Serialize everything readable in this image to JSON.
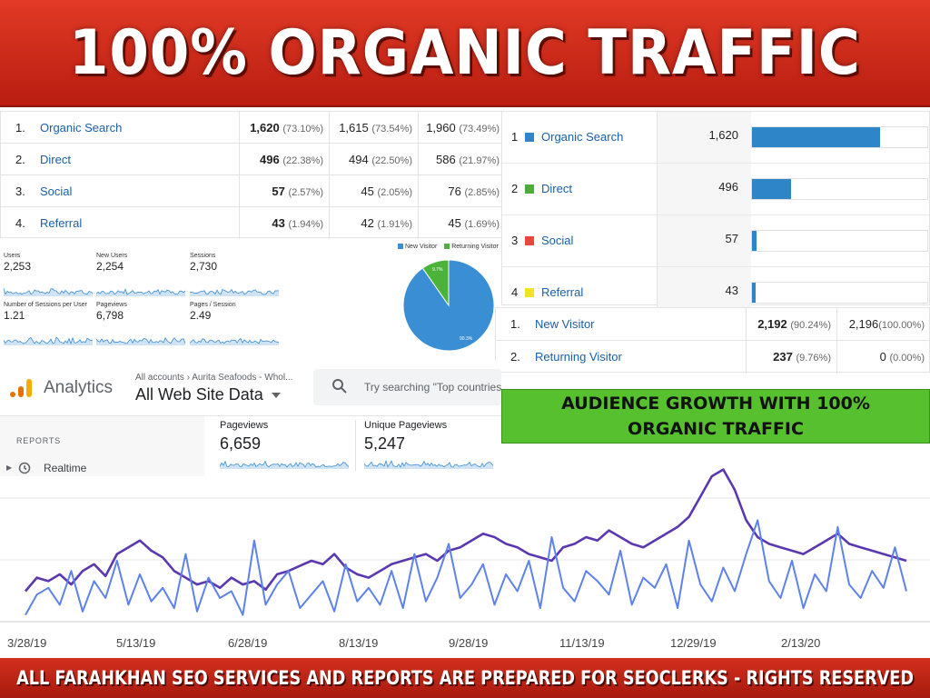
{
  "banner": {
    "title": "100% ORGANIC TRAFFIC",
    "footer": "ALL FARAHKHAN SEO SERVICES AND REPORTS ARE PREPARED FOR SEOCLERKS -  RIGHTS RESERVED"
  },
  "channel_table": {
    "rows": [
      {
        "num": "1.",
        "name": "Organic Search",
        "c1": "1,620",
        "p1": "(73.10%)",
        "c2": "1,615",
        "p2": "(73.54%)",
        "c3": "1,960",
        "p3": "(73.49%)"
      },
      {
        "num": "2.",
        "name": "Direct",
        "c1": "496",
        "p1": "(22.38%)",
        "c2": "494",
        "p2": "(22.50%)",
        "c3": "586",
        "p3": "(21.97%)"
      },
      {
        "num": "3.",
        "name": "Social",
        "c1": "57",
        "p1": "(2.57%)",
        "c2": "45",
        "p2": "(2.05%)",
        "c3": "76",
        "p3": "(2.85%)"
      },
      {
        "num": "4.",
        "name": "Referral",
        "c1": "43",
        "p1": "(1.94%)",
        "c2": "42",
        "p2": "(1.91%)",
        "c3": "45",
        "p3": "(1.69%)"
      }
    ]
  },
  "channel_bars": {
    "max": 1620,
    "rows": [
      {
        "num": "1",
        "name": "Organic Search",
        "value": "1,620",
        "amount": 1620,
        "color": "#2e86c9"
      },
      {
        "num": "2",
        "name": "Direct",
        "value": "496",
        "amount": 496,
        "color": "#49b035"
      },
      {
        "num": "3",
        "name": "Social",
        "value": "57",
        "amount": 57,
        "color": "#e8483a"
      },
      {
        "num": "4",
        "name": "Referral",
        "value": "43",
        "amount": 43,
        "color": "#f0e325"
      }
    ]
  },
  "visitor_table": {
    "rows": [
      {
        "num": "1.",
        "name": "New Visitor",
        "c1": "2,192",
        "p1": "(90.24%)",
        "c2": "2,196",
        "p2": "(100.00%)"
      },
      {
        "num": "2.",
        "name": "Returning Visitor",
        "c1": "237",
        "p1": "(9.76%)",
        "c2": "0",
        "p2": "(0.00%)"
      }
    ]
  },
  "overview": {
    "metrics": [
      {
        "label": "Users",
        "value": "2,253"
      },
      {
        "label": "New Users",
        "value": "2,254"
      },
      {
        "label": "Sessions",
        "value": "2,730"
      },
      {
        "label": "Number of Sessions per User",
        "value": "1.21"
      },
      {
        "label": "Pageviews",
        "value": "6,798"
      },
      {
        "label": "Pages / Session",
        "value": "2.49"
      }
    ],
    "legend": {
      "new": "New Visitor",
      "returning": "Returning Visitor"
    },
    "pie": {
      "new_pct": 90.3,
      "returning_pct": 9.7,
      "new_label": "90.3%",
      "returning_label": "9.7%",
      "new_color": "#3a8ed4",
      "returning_color": "#4bb33a"
    }
  },
  "analytics": {
    "product": "Analytics",
    "breadcrumb": "All accounts › Aurita Seafoods - Whol...",
    "view": "All Web Site Data",
    "search_placeholder": "Try searching \"Top countries",
    "reports": "REPORTS",
    "realtime": "Realtime",
    "pageviews_label": "Pageviews",
    "pageviews_value": "6,659",
    "unique_label": "Unique Pageviews",
    "unique_value": "5,247"
  },
  "growth_label": {
    "line1": "AUDIENCE GROWTH WITH 100%",
    "line2": "ORGANIC TRAFFIC"
  },
  "chart_data": {
    "type": "line",
    "x_ticks": [
      "3/28/19",
      "5/13/19",
      "6/28/19",
      "8/13/19",
      "9/28/19",
      "11/13/19",
      "12/29/19",
      "2/13/20"
    ],
    "series": [
      {
        "color": "#5b38b0",
        "values": [
          18,
          26,
          24,
          28,
          22,
          30,
          34,
          27,
          40,
          44,
          48,
          42,
          38,
          30,
          26,
          22,
          24,
          20,
          26,
          22,
          24,
          19,
          28,
          30,
          33,
          36,
          34,
          40,
          32,
          28,
          26,
          30,
          34,
          36,
          38,
          40,
          36,
          42,
          44,
          48,
          52,
          50,
          46,
          44,
          40,
          38,
          36,
          44,
          46,
          50,
          48,
          54,
          50,
          46,
          44,
          48,
          52,
          56,
          62,
          74,
          86,
          90,
          78,
          60,
          50,
          46,
          44,
          42,
          40,
          44,
          48,
          52,
          46,
          44,
          42,
          40,
          38,
          36
        ]
      },
      {
        "color": "#5e82e8",
        "values": [
          4,
          16,
          20,
          10,
          30,
          6,
          24,
          14,
          36,
          10,
          28,
          12,
          20,
          8,
          40,
          6,
          26,
          14,
          18,
          4,
          48,
          10,
          22,
          30,
          8,
          16,
          24,
          6,
          34,
          12,
          20,
          10,
          30,
          8,
          40,
          12,
          26,
          46,
          14,
          22,
          34,
          10,
          28,
          18,
          36,
          8,
          50,
          20,
          12,
          30,
          24,
          16,
          42,
          10,
          26,
          20,
          34,
          8,
          48,
          22,
          12,
          32,
          18,
          40,
          60,
          24,
          14,
          36,
          8,
          28,
          18,
          56,
          22,
          14,
          30,
          20,
          44,
          18
        ]
      }
    ]
  }
}
